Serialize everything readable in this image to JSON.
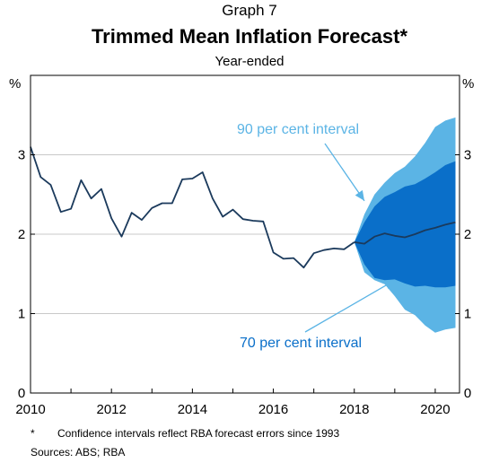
{
  "header": {
    "graph_label": "Graph 7",
    "title": "Trimmed Mean Inflation Forecast*",
    "subtitle": "Year-ended"
  },
  "footnotes": {
    "star": "*",
    "note": "Confidence intervals reflect RBA forecast errors since 1993",
    "sources": "Sources:   ABS; RBA"
  },
  "colors": {
    "line": "#1b3a5c",
    "interval_90": "#5bb4e5",
    "interval_70": "#0a6fc9",
    "grid": "#c8c8c8",
    "annot_90": "#5bb4e5",
    "annot_70": "#0a6fc9"
  },
  "chart_data": {
    "type": "area",
    "title": "Trimmed Mean Inflation Forecast*",
    "subtitle": "Year-ended",
    "ylabel_left": "%",
    "ylabel_right": "%",
    "xlim": [
      2010,
      2020.6
    ],
    "ylim": [
      0,
      4
    ],
    "xticks": [
      2010,
      2012,
      2014,
      2016,
      2018,
      2020
    ],
    "yticks": [
      0,
      1,
      2,
      3
    ],
    "grid": true,
    "series": [
      {
        "type": "line",
        "x": [
          2010.0,
          2010.25,
          2010.5,
          2010.75,
          2011.0,
          2011.25,
          2011.5,
          2011.75,
          2012.0,
          2012.25,
          2012.5,
          2012.75,
          2013.0,
          2013.25,
          2013.5,
          2013.75,
          2014.0,
          2014.25,
          2014.5,
          2014.75,
          2015.0,
          2015.25,
          2015.5,
          2015.75,
          2016.0,
          2016.25,
          2016.5,
          2016.75,
          2017.0,
          2017.25,
          2017.5,
          2017.75,
          2018.0
        ],
        "values": [
          3.1,
          2.72,
          2.62,
          2.28,
          2.32,
          2.68,
          2.45,
          2.57,
          2.2,
          1.97,
          2.27,
          2.18,
          2.33,
          2.39,
          2.39,
          2.69,
          2.7,
          2.78,
          2.45,
          2.22,
          2.31,
          2.19,
          2.17,
          2.16,
          1.77,
          1.69,
          1.7,
          1.58,
          1.76,
          1.8,
          1.82,
          1.81,
          1.9
        ]
      },
      {
        "type": "line",
        "x": [
          2018.0,
          2018.25,
          2018.5,
          2018.75,
          2019.0,
          2019.25,
          2019.5,
          2019.75,
          2020.0,
          2020.25,
          2020.5
        ],
        "values": [
          1.9,
          1.88,
          1.97,
          2.01,
          1.98,
          1.96,
          2.0,
          2.05,
          2.08,
          2.12,
          2.15
        ]
      },
      {
        "type": "band",
        "x": [
          2018.0,
          2018.25,
          2018.5,
          2018.75,
          2019.0,
          2019.25,
          2019.5,
          2019.75,
          2020.0,
          2020.25,
          2020.5
        ],
        "lower": [
          1.9,
          1.62,
          1.45,
          1.42,
          1.43,
          1.38,
          1.34,
          1.35,
          1.33,
          1.33,
          1.35
        ],
        "upper": [
          1.9,
          2.15,
          2.35,
          2.47,
          2.53,
          2.6,
          2.63,
          2.7,
          2.78,
          2.87,
          2.92
        ]
      },
      {
        "type": "band",
        "x": [
          2018.0,
          2018.25,
          2018.5,
          2018.75,
          2019.0,
          2019.25,
          2019.5,
          2019.75,
          2020.0,
          2020.25,
          2020.5
        ],
        "lower": [
          1.9,
          1.52,
          1.42,
          1.37,
          1.22,
          1.05,
          0.98,
          0.85,
          0.76,
          0.8,
          0.82
        ],
        "upper": [
          1.9,
          2.25,
          2.5,
          2.65,
          2.77,
          2.85,
          2.98,
          3.15,
          3.35,
          3.43,
          3.47
        ]
      }
    ],
    "annotations": [
      {
        "text": "90 per cent interval",
        "arrow_to": [
          2018.25,
          2.42
        ]
      },
      {
        "text": "70 per cent interval",
        "arrow_to": [
          2019.0,
          1.42
        ]
      }
    ]
  }
}
